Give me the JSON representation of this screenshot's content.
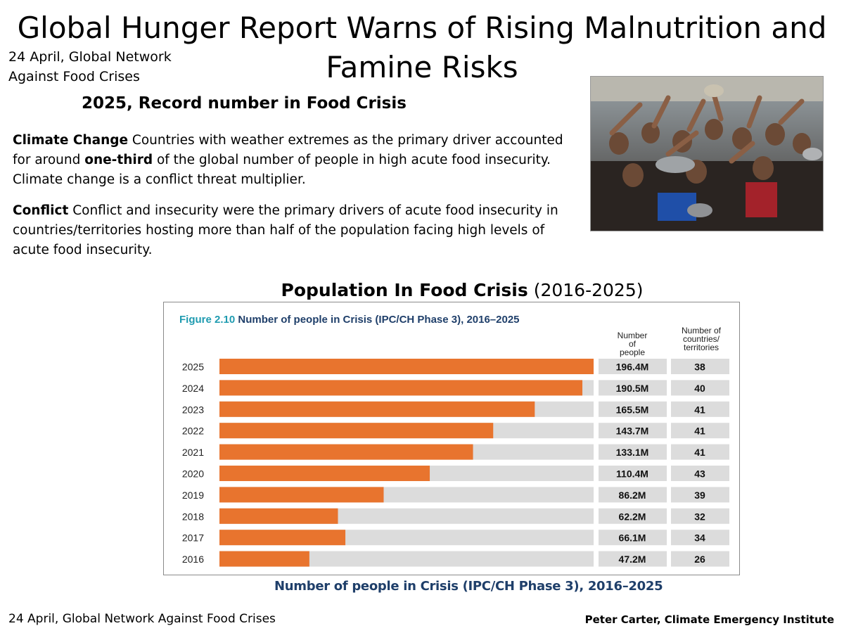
{
  "title": "Global Hunger Report Warns of Rising Malnutrition and Famine Risks",
  "dateline": "24 April, Global Network Against Food Crises",
  "subhead": "2025, Record number in Food Crisis",
  "paragraphs": {
    "climate": {
      "lead": "Climate Change",
      "before": " Countries with weather extremes as the primary driver accounted for around ",
      "emph": "one-third",
      "after": " of the global number of people in high acute food insecurity. Climate change is a conflict threat multiplier."
    },
    "conflict": {
      "lead": "Conflict",
      "text": " Conflict and insecurity were the primary drivers of acute food insecurity in countries/territories hosting more than half of the population facing high levels of acute food insecurity."
    }
  },
  "chart_heading": {
    "bold": "Population In Food Crisis",
    "normal": "(2016-2025)"
  },
  "chart_footer": "Number of people in Crisis (IPC/CH Phase 3), 2016–2025",
  "footer": {
    "left": "24 April, Global Network  Against Food Crises",
    "right": "Peter Carter, Climate Emergency Institute"
  },
  "colors": {
    "bar": "#e8742e",
    "track": "#dcdcdc",
    "figure_label": "#1f9bb0",
    "figure_title": "#1f3f6a"
  },
  "chart_data": {
    "type": "bar",
    "orientation": "horizontal",
    "figure_label": "Figure 2.10",
    "title": "Number of people in Crisis (IPC/CH Phase 3), 2016–2025",
    "col_people": "Number of people",
    "col_countries": "Number of countries/ territories",
    "max_value": 196.4,
    "categories": [
      "2025",
      "2024",
      "2023",
      "2022",
      "2021",
      "2020",
      "2019",
      "2018",
      "2017",
      "2016"
    ],
    "values": [
      196.4,
      190.5,
      165.5,
      143.7,
      133.1,
      110.4,
      86.2,
      62.2,
      66.1,
      47.2
    ],
    "people_labels": [
      "196.4M",
      "190.5M",
      "165.5M",
      "143.7M",
      "133.1M",
      "110.4M",
      "86.2M",
      "62.2M",
      "66.1M",
      "47.2M"
    ],
    "countries": [
      "38",
      "40",
      "41",
      "41",
      "41",
      "43",
      "39",
      "32",
      "34",
      "26"
    ]
  }
}
